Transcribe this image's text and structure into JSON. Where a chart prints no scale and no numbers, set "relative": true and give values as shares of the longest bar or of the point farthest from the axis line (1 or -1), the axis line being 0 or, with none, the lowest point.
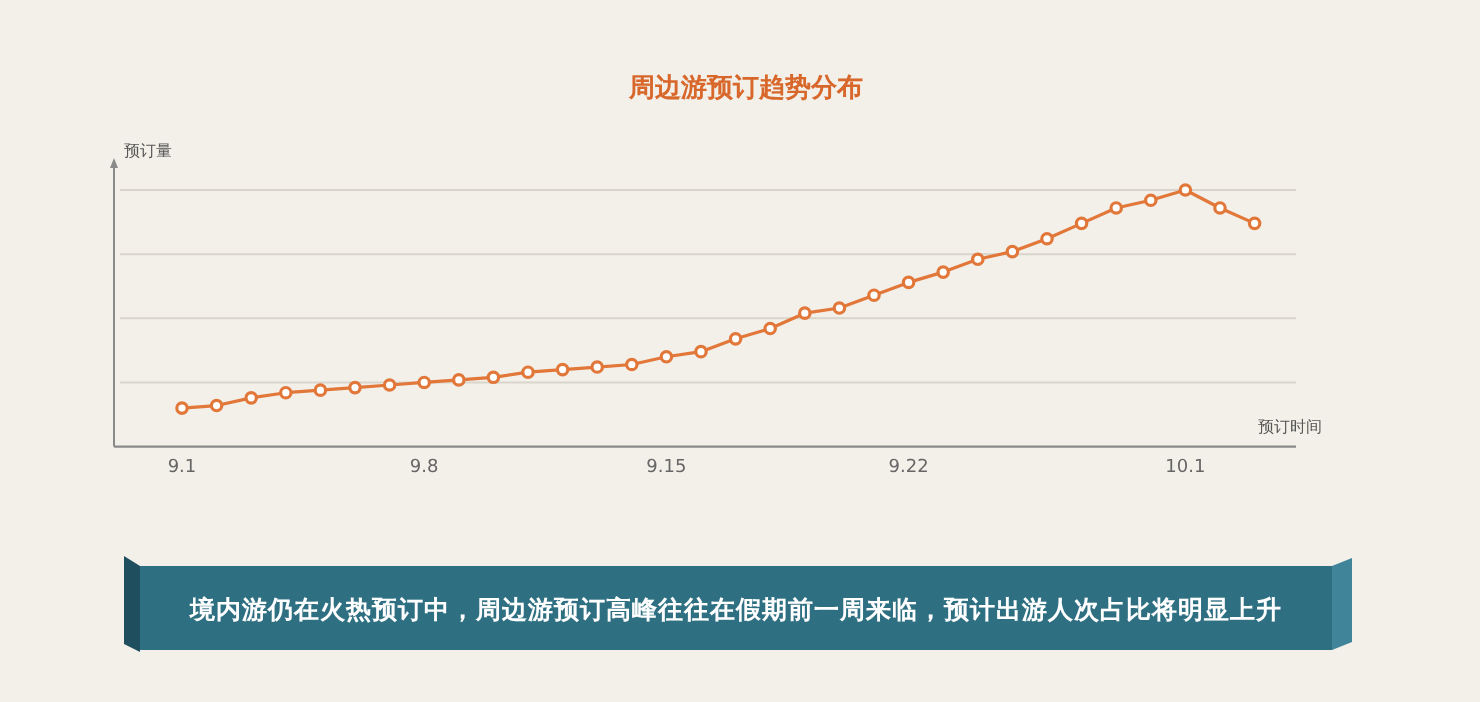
{
  "chart_data": {
    "type": "line",
    "title": "周边游预订趋势分布",
    "xlabel": "预订时间",
    "ylabel": "预订量",
    "categories": [
      "9.1",
      null,
      null,
      null,
      null,
      null,
      null,
      "9.8",
      null,
      null,
      null,
      null,
      null,
      null,
      "9.15",
      null,
      null,
      null,
      null,
      null,
      null,
      "9.22",
      null,
      null,
      null,
      null,
      null,
      null,
      null,
      "10.1",
      null,
      null
    ],
    "series": [
      {
        "color": "#e2773a",
        "values": [
          0.15,
          0.16,
          0.19,
          0.21,
          0.22,
          0.23,
          0.24,
          0.25,
          0.26,
          0.27,
          0.29,
          0.3,
          0.31,
          0.32,
          0.35,
          0.37,
          0.42,
          0.46,
          0.52,
          0.54,
          0.59,
          0.64,
          0.68,
          0.73,
          0.76,
          0.81,
          0.87,
          0.93,
          0.96,
          1,
          0.93,
          0.87
        ]
      }
    ],
    "relative": true,
    "grid": "y",
    "marker": "circle",
    "annotations": [
      "境内游仍在火热预订中，周边游预订高峰往往在假期前一周来临，预计出游人次占比将明显上升"
    ]
  }
}
